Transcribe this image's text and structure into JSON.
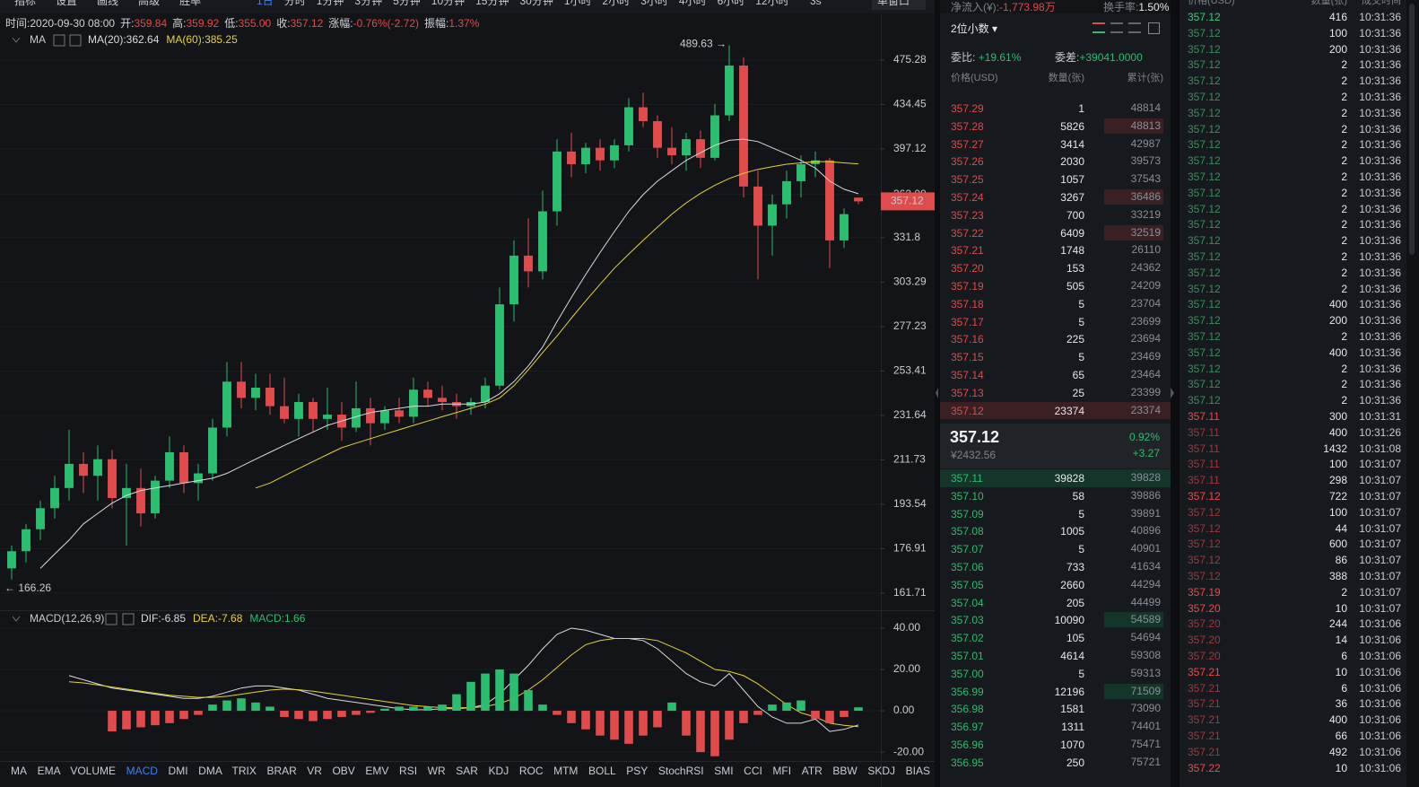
{
  "toolbar": {
    "tools": [
      "指标",
      "设置",
      "画线",
      "高级",
      "胜率"
    ],
    "intervals": [
      "1日",
      "分时",
      "1分钟",
      "3分钟",
      "5分钟",
      "10分钟",
      "15分钟",
      "30分钟",
      "1小时",
      "2小时",
      "3小时",
      "4小时",
      "6小时",
      "12小时"
    ],
    "active_interval": 0,
    "refresh": "3s",
    "window": "单窗口"
  },
  "chart_data": [
    {
      "type": "candlestick",
      "info": [
        {
          "label": "时间:",
          "value": "2020-09-30 08:00"
        },
        {
          "label": "开:",
          "value": "359.84"
        },
        {
          "label": "高:",
          "value": "359.92"
        },
        {
          "label": "低:",
          "value": "355.00"
        },
        {
          "label": "收:",
          "value": "357.12"
        },
        {
          "label": "涨幅:",
          "value": "-0.76%(-2.72)"
        },
        {
          "label": "振幅:",
          "value": "1.37%"
        }
      ],
      "legend_title": "MA",
      "up_color": "#2dbd6e",
      "down_color": "#e04b4b",
      "log": true,
      "grid": true,
      "ylim": [
        156.2,
        519.4
      ],
      "yticks": [
        475.28,
        434.45,
        397.12,
        {
          "value": 362,
          "label": "362.00"
        },
        331.8,
        303.29,
        277.23,
        253.41,
        231.64,
        211.73,
        193.54,
        176.91,
        161.71
      ],
      "open": [
        170,
        176,
        184,
        192,
        200,
        210,
        205,
        212,
        196,
        200,
        190,
        203,
        215,
        202,
        206,
        226,
        248,
        240,
        245,
        236,
        230,
        238,
        230,
        232,
        226,
        235,
        228,
        234,
        231,
        244,
        240,
        238,
        236,
        238,
        246,
        290,
        320,
        310,
        350,
        395,
        385,
        398,
        388,
        400,
        432,
        420,
        398,
        392,
        405,
        390,
        425,
        470,
        368,
        340,
        355,
        372,
        385,
        388,
        330,
        359.84
      ],
      "high": [
        178,
        186,
        195,
        205,
        225,
        215,
        218,
        216,
        210,
        208,
        205,
        222,
        218,
        210,
        230,
        258,
        258,
        252,
        252,
        250,
        242,
        240,
        245,
        238,
        248,
        240,
        236,
        240,
        250,
        248,
        246,
        242,
        240,
        250,
        300,
        330,
        345,
        365,
        405,
        410,
        402,
        405,
        405,
        440,
        445,
        425,
        415,
        410,
        412,
        435,
        489.63,
        478,
        380,
        362,
        380,
        392,
        395,
        390,
        352,
        359.92
      ],
      "low": [
        166.26,
        172,
        180,
        188,
        195,
        198,
        195,
        192,
        178,
        185,
        188,
        200,
        198,
        195,
        203,
        222,
        235,
        234,
        232,
        228,
        222,
        224,
        225,
        220,
        224,
        218,
        225,
        228,
        228,
        236,
        234,
        230,
        232,
        235,
        244,
        280,
        300,
        305,
        340,
        375,
        378,
        380,
        382,
        395,
        415,
        390,
        385,
        380,
        382,
        388,
        420,
        360,
        305,
        320,
        345,
        360,
        375,
        312,
        325,
        355
      ],
      "close": [
        176,
        184,
        192,
        200,
        210,
        205,
        212,
        196,
        200,
        190,
        203,
        215,
        202,
        206,
        226,
        248,
        240,
        245,
        236,
        230,
        238,
        230,
        232,
        226,
        235,
        228,
        234,
        231,
        244,
        240,
        238,
        236,
        238,
        246,
        290,
        320,
        310,
        350,
        395,
        385,
        398,
        388,
        400,
        432,
        420,
        398,
        392,
        405,
        390,
        425,
        470,
        368,
        340,
        355,
        372,
        385,
        388,
        330,
        348,
        357.12
      ],
      "series": [
        {
          "name": "MA(20):362.64",
          "color": "#d9dbde",
          "values": [
            null,
            null,
            170,
            175,
            180,
            186,
            190,
            194,
            197,
            199,
            200,
            201,
            202,
            203,
            204,
            206,
            209,
            212,
            215,
            218,
            221,
            224,
            227,
            229,
            231,
            233,
            234,
            235,
            236,
            236,
            237,
            237,
            237,
            238,
            242,
            248,
            256,
            266,
            280,
            294,
            308,
            322,
            336,
            350,
            362,
            372,
            380,
            388,
            394,
            400,
            404,
            405,
            403,
            398,
            393,
            388,
            382,
            372,
            366,
            362.64
          ]
        },
        {
          "name": "MA(60):385.25",
          "color": "#e6d23a",
          "values": [
            null,
            null,
            null,
            null,
            null,
            null,
            null,
            null,
            null,
            null,
            null,
            null,
            null,
            null,
            null,
            null,
            null,
            200,
            202,
            205,
            208,
            211,
            214,
            217,
            219,
            221,
            223,
            225,
            227,
            229,
            231,
            233,
            235,
            237,
            240,
            246,
            254,
            263,
            272,
            282,
            292,
            302,
            312,
            321,
            330,
            339,
            348,
            356,
            363,
            369,
            374,
            378,
            381,
            383,
            385,
            386,
            387,
            387,
            386,
            385.25
          ]
        }
      ],
      "high_label": "489.63 →",
      "low_label": "← 166.26",
      "price_tag": "357.12"
    },
    {
      "type": "macd",
      "title": "MACD(12,26,9)",
      "up_color": "#2dbd6e",
      "down_color": "#e04b4b",
      "grid": true,
      "ylim": [
        -24.3,
        47.8
      ],
      "yticks": [
        {
          "value": 40,
          "label": "40.00"
        },
        {
          "value": 20,
          "label": "20.00"
        },
        {
          "value": 0,
          "label": "0.00"
        },
        {
          "value": -20,
          "label": "-20.00"
        }
      ],
      "series": [
        {
          "name": "DIF:-6.85",
          "color": "#d9dbde",
          "values": [
            null,
            null,
            null,
            null,
            17,
            15,
            13,
            11,
            10,
            9,
            8,
            7,
            6,
            6,
            7,
            9,
            11,
            12,
            12,
            11,
            10,
            8,
            6,
            5,
            4,
            3,
            2,
            1,
            0.5,
            0.5,
            1,
            1,
            1.5,
            3,
            8,
            15,
            22,
            30,
            37,
            40,
            39,
            37,
            35,
            35,
            34,
            30,
            24,
            18,
            14,
            12,
            18,
            10,
            2,
            -3,
            -6,
            -6,
            -4,
            -10,
            -9,
            -6.85
          ]
        },
        {
          "name": "DEA:-7.68",
          "color": "#e6d23a",
          "values": [
            null,
            null,
            null,
            null,
            14,
            13.5,
            12.5,
            11.5,
            10.5,
            9.5,
            8.5,
            7.5,
            7,
            6.5,
            6.5,
            7,
            8,
            9,
            10,
            10.5,
            10.2,
            9.5,
            8.5,
            7.5,
            6.5,
            5.5,
            4.5,
            3.5,
            2.5,
            2,
            1.5,
            1.5,
            1.5,
            2,
            3.5,
            6,
            10,
            15,
            21,
            27,
            32,
            34,
            35,
            35,
            35,
            34,
            31,
            28,
            24,
            20,
            19,
            17,
            13,
            8,
            3,
            -1,
            -3,
            -6,
            -7,
            -7.68
          ]
        },
        {
          "name": "MACD:1.66",
          "color": "#2dbd6e",
          "histogram": true,
          "values": [
            null,
            null,
            null,
            null,
            null,
            null,
            null,
            -10,
            -9,
            -8,
            -7,
            -6,
            -4,
            -2,
            3,
            5,
            6,
            4,
            2,
            -3,
            -4,
            -5,
            -4,
            -3,
            -2,
            -1,
            1,
            2,
            2,
            2,
            3,
            8,
            14,
            18,
            20,
            18,
            10,
            3,
            -2,
            -6,
            -9,
            -12,
            -14,
            -16,
            -12,
            -8,
            4,
            -12,
            -20,
            -22,
            -14,
            -6,
            -2,
            3,
            4,
            5,
            -4,
            -6,
            -3,
            1.66
          ]
        }
      ]
    }
  ],
  "indicator_tabs": [
    "MA",
    "EMA",
    "VOLUME",
    "MACD",
    "DMI",
    "DMA",
    "TRIX",
    "BRAR",
    "VR",
    "OBV",
    "EMV",
    "RSI",
    "WR",
    "SAR",
    "KDJ",
    "ROC",
    "MTM",
    "BOLL",
    "PSY",
    "StochRSI",
    "SMI",
    "CCI",
    "MFI",
    "ATR",
    "BBW",
    "SKDJ",
    "BIAS"
  ],
  "active_tab": 3,
  "order_book": {
    "net_inflow_label": "净流入(¥):",
    "net_inflow": "-1,773.98万",
    "turnover_label": "换手率:",
    "turnover": "1.50%",
    "decimals": "2位小数",
    "ratio_label": "委比:",
    "ratio": "+19.61%",
    "diff_label": "委差:",
    "diff": "+39041.0000",
    "headers": [
      "价格(USD)",
      "数量(张)",
      "累计(张)"
    ],
    "asks": [
      [
        "357.29",
        "1",
        "48814"
      ],
      [
        "357.28",
        "5826",
        "48813"
      ],
      [
        "357.27",
        "3414",
        "42987"
      ],
      [
        "357.26",
        "2030",
        "39573"
      ],
      [
        "357.25",
        "1057",
        "37543"
      ],
      [
        "357.24",
        "3267",
        "36486"
      ],
      [
        "357.23",
        "700",
        "33219"
      ],
      [
        "357.22",
        "6409",
        "32519"
      ],
      [
        "357.21",
        "1748",
        "26110"
      ],
      [
        "357.20",
        "153",
        "24362"
      ],
      [
        "357.19",
        "505",
        "24209"
      ],
      [
        "357.18",
        "5",
        "23704"
      ],
      [
        "357.17",
        "5",
        "23699"
      ],
      [
        "357.16",
        "225",
        "23694"
      ],
      [
        "357.15",
        "5",
        "23469"
      ],
      [
        "357.14",
        "65",
        "23464"
      ],
      [
        "357.13",
        "25",
        "23399"
      ],
      [
        "357.12",
        "23374",
        "23374"
      ]
    ],
    "last": {
      "price": "357.12",
      "cny": "¥2432.56",
      "pct": "0.92%",
      "change": "+3.27"
    },
    "bids": [
      [
        "357.11",
        "39828",
        "39828"
      ],
      [
        "357.10",
        "58",
        "39886"
      ],
      [
        "357.09",
        "5",
        "39891"
      ],
      [
        "357.08",
        "1005",
        "40896"
      ],
      [
        "357.07",
        "5",
        "40901"
      ],
      [
        "357.06",
        "733",
        "41634"
      ],
      [
        "357.05",
        "2660",
        "44294"
      ],
      [
        "357.04",
        "205",
        "44499"
      ],
      [
        "357.03",
        "10090",
        "54589"
      ],
      [
        "357.02",
        "105",
        "54694"
      ],
      [
        "357.01",
        "4614",
        "59308"
      ],
      [
        "357.00",
        "5",
        "59313"
      ],
      [
        "356.99",
        "12196",
        "71509"
      ],
      [
        "356.98",
        "1581",
        "73090"
      ],
      [
        "356.97",
        "1311",
        "74401"
      ],
      [
        "356.96",
        "1070",
        "75471"
      ],
      [
        "356.95",
        "250",
        "75721"
      ]
    ]
  },
  "trades": {
    "headers": [
      "价格(USD)",
      "数量(张)",
      "成交时间"
    ],
    "rows": [
      {
        "price": "357.12",
        "qty": "416",
        "time": "10:31:36",
        "color": "#3ccb7f"
      },
      {
        "price": "357.12",
        "qty": "100",
        "time": "10:31:36",
        "color": "#3a8f5e"
      },
      {
        "price": "357.12",
        "qty": "200",
        "time": "10:31:36",
        "color": "#3a8f5e"
      },
      {
        "price": "357.12",
        "qty": "2",
        "time": "10:31:36",
        "color": "#3a8f5e"
      },
      {
        "price": "357.12",
        "qty": "2",
        "time": "10:31:36",
        "color": "#3a8f5e"
      },
      {
        "price": "357.12",
        "qty": "2",
        "time": "10:31:36",
        "color": "#3a8f5e"
      },
      {
        "price": "357.12",
        "qty": "2",
        "time": "10:31:36",
        "color": "#3a8f5e"
      },
      {
        "price": "357.12",
        "qty": "2",
        "time": "10:31:36",
        "color": "#3a8f5e"
      },
      {
        "price": "357.12",
        "qty": "2",
        "time": "10:31:36",
        "color": "#3a8f5e"
      },
      {
        "price": "357.12",
        "qty": "2",
        "time": "10:31:36",
        "color": "#3a8f5e"
      },
      {
        "price": "357.12",
        "qty": "2",
        "time": "10:31:36",
        "color": "#3a8f5e"
      },
      {
        "price": "357.12",
        "qty": "2",
        "time": "10:31:36",
        "color": "#3a8f5e"
      },
      {
        "price": "357.12",
        "qty": "2",
        "time": "10:31:36",
        "color": "#3a8f5e"
      },
      {
        "price": "357.12",
        "qty": "2",
        "time": "10:31:36",
        "color": "#3a8f5e"
      },
      {
        "price": "357.12",
        "qty": "2",
        "time": "10:31:36",
        "color": "#3a8f5e"
      },
      {
        "price": "357.12",
        "qty": "2",
        "time": "10:31:36",
        "color": "#3a8f5e"
      },
      {
        "price": "357.12",
        "qty": "2",
        "time": "10:31:36",
        "color": "#3a8f5e"
      },
      {
        "price": "357.12",
        "qty": "2",
        "time": "10:31:36",
        "color": "#3a8f5e"
      },
      {
        "price": "357.12",
        "qty": "400",
        "time": "10:31:36",
        "color": "#3a8f5e"
      },
      {
        "price": "357.12",
        "qty": "200",
        "time": "10:31:36",
        "color": "#3a8f5e"
      },
      {
        "price": "357.12",
        "qty": "2",
        "time": "10:31:36",
        "color": "#3a8f5e"
      },
      {
        "price": "357.12",
        "qty": "400",
        "time": "10:31:36",
        "color": "#3a8f5e"
      },
      {
        "price": "357.12",
        "qty": "2",
        "time": "10:31:36",
        "color": "#3a8f5e"
      },
      {
        "price": "357.12",
        "qty": "2",
        "time": "10:31:36",
        "color": "#3a8f5e"
      },
      {
        "price": "357.12",
        "qty": "2",
        "time": "10:31:36",
        "color": "#3a8f5e"
      },
      {
        "price": "357.11",
        "qty": "300",
        "time": "10:31:31",
        "color": "#f0494a"
      },
      {
        "price": "357.11",
        "qty": "400",
        "time": "10:31:26",
        "color": "#9b3b43"
      },
      {
        "price": "357.11",
        "qty": "1432",
        "time": "10:31:08",
        "color": "#9b3b43"
      },
      {
        "price": "357.11",
        "qty": "100",
        "time": "10:31:07",
        "color": "#9b3b43"
      },
      {
        "price": "357.11",
        "qty": "298",
        "time": "10:31:07",
        "color": "#9b3b43"
      },
      {
        "price": "357.12",
        "qty": "722",
        "time": "10:31:07",
        "color": "#f0494a"
      },
      {
        "price": "357.12",
        "qty": "100",
        "time": "10:31:07",
        "color": "#9b3b43"
      },
      {
        "price": "357.12",
        "qty": "44",
        "time": "10:31:07",
        "color": "#9b3b43"
      },
      {
        "price": "357.12",
        "qty": "600",
        "time": "10:31:07",
        "color": "#9b3b43"
      },
      {
        "price": "357.12",
        "qty": "86",
        "time": "10:31:07",
        "color": "#9b3b43"
      },
      {
        "price": "357.12",
        "qty": "388",
        "time": "10:31:07",
        "color": "#9b3b43"
      },
      {
        "price": "357.19",
        "qty": "2",
        "time": "10:31:07",
        "color": "#f0494a"
      },
      {
        "price": "357.20",
        "qty": "10",
        "time": "10:31:07",
        "color": "#f0494a"
      },
      {
        "price": "357.20",
        "qty": "244",
        "time": "10:31:06",
        "color": "#9b3b43"
      },
      {
        "price": "357.20",
        "qty": "14",
        "time": "10:31:06",
        "color": "#9b3b43"
      },
      {
        "price": "357.20",
        "qty": "6",
        "time": "10:31:06",
        "color": "#9b3b43"
      },
      {
        "price": "357.21",
        "qty": "10",
        "time": "10:31:06",
        "color": "#f0494a"
      },
      {
        "price": "357.21",
        "qty": "6",
        "time": "10:31:06",
        "color": "#9b3b43"
      },
      {
        "price": "357.21",
        "qty": "36",
        "time": "10:31:06",
        "color": "#9b3b43"
      },
      {
        "price": "357.21",
        "qty": "400",
        "time": "10:31:06",
        "color": "#9b3b43"
      },
      {
        "price": "357.21",
        "qty": "66",
        "time": "10:31:06",
        "color": "#9b3b43"
      },
      {
        "price": "357.21",
        "qty": "492",
        "time": "10:31:06",
        "color": "#9b3b43"
      },
      {
        "price": "357.22",
        "qty": "10",
        "time": "10:31:06",
        "color": "#f0494a"
      }
    ]
  }
}
